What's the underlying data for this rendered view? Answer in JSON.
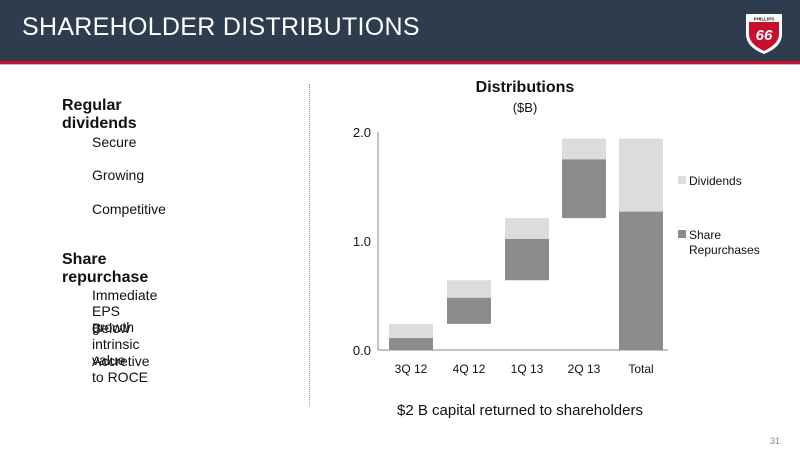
{
  "slide": {
    "title": "SHAREHOLDER DISTRIBUTIONS",
    "page_number": "31",
    "logo_text": {
      "top": "PHILLIPS",
      "main": "66"
    }
  },
  "bullets": [
    {
      "label": "Regular dividends",
      "sub": [
        "Secure",
        "Growing",
        "Competitive"
      ]
    },
    {
      "label": "Share repurchase",
      "sub": [
        "Immediate EPS growth",
        "Below intrinsic value",
        "Accretive to ROCE"
      ]
    }
  ],
  "caption": "$2 B capital returned to shareholders",
  "colors": {
    "header_bg": "#2d3d4d",
    "accent_red": "#c8102e",
    "dividends": "#dcdcdc",
    "share_repurchases": "#8c8c8c"
  },
  "chart_data": {
    "type": "bar",
    "subtype": "waterfall-stacked",
    "title": "Distributions",
    "subtitle": "($B)",
    "categories": [
      "3Q 12",
      "4Q 12",
      "1Q 13",
      "2Q 13",
      "Total"
    ],
    "ylim": [
      0,
      2.0
    ],
    "yticks": [
      "0.0",
      "1.0",
      "2.0"
    ],
    "series": [
      {
        "name": "Share Repurchases",
        "values": [
          0.11,
          0.24,
          0.38,
          0.54,
          1.27
        ],
        "color": "#8c8c8c"
      },
      {
        "name": "Dividends",
        "values": [
          0.13,
          0.16,
          0.19,
          0.19,
          0.67
        ],
        "color": "#dcdcdc"
      }
    ],
    "bases": [
      0.0,
      0.24,
      0.64,
      1.21,
      0.0
    ],
    "legend": [
      "Dividends",
      "Share Repurchases"
    ],
    "legend_position": "right",
    "grid": false
  }
}
